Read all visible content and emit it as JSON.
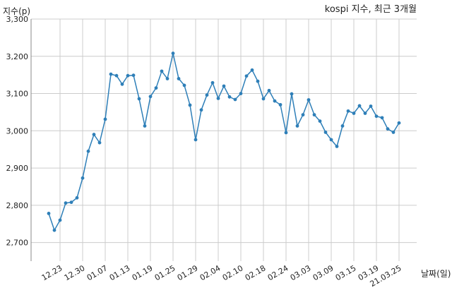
{
  "chart_data": {
    "type": "line",
    "title": "kospi 지수, 최근 3개월",
    "ylabel": "지수(p)",
    "xlabel": "날짜(일)",
    "ylim": [
      2650,
      3300
    ],
    "yticks": [
      2700,
      2800,
      2900,
      3000,
      3100,
      3200,
      3300
    ],
    "ytick_labels": [
      "2,700",
      "2,800",
      "2,900",
      "3,000",
      "3,100",
      "3,200",
      "3,300"
    ],
    "xtick_labels": [
      "12.23",
      "12.30",
      "01.07",
      "01.13",
      "01.19",
      "01.25",
      "01.29",
      "02.04",
      "02.10",
      "02.18",
      "02.24",
      "03.03",
      "03.09",
      "03.15",
      "03.19",
      "21.03.25"
    ],
    "xtick_indices": [
      2,
      6,
      10,
      14,
      18,
      22,
      26,
      30,
      34,
      38,
      42,
      46,
      50,
      54,
      58,
      62
    ],
    "grid": true,
    "line_color": "#2e7fb8",
    "series": [
      {
        "values": [
          2778,
          2733,
          2760,
          2806,
          2808,
          2820,
          2873,
          2945,
          2990,
          2968,
          3031,
          3152,
          3148,
          3125,
          3148,
          3149,
          3086,
          3013,
          3092,
          3115,
          3160,
          3140,
          3208,
          3140,
          3122,
          3069,
          2976,
          3056,
          3096,
          3129,
          3087,
          3120,
          3091,
          3084,
          3100,
          3147,
          3163,
          3133,
          3086,
          3108,
          3080,
          3070,
          2995,
          3099,
          3013,
          3043,
          3083,
          3043,
          3026,
          2996,
          2976,
          2958,
          3013,
          3053,
          3047,
          3067,
          3047,
          3066,
          3039,
          3035,
          3005,
          2996,
          3021
        ]
      }
    ]
  }
}
